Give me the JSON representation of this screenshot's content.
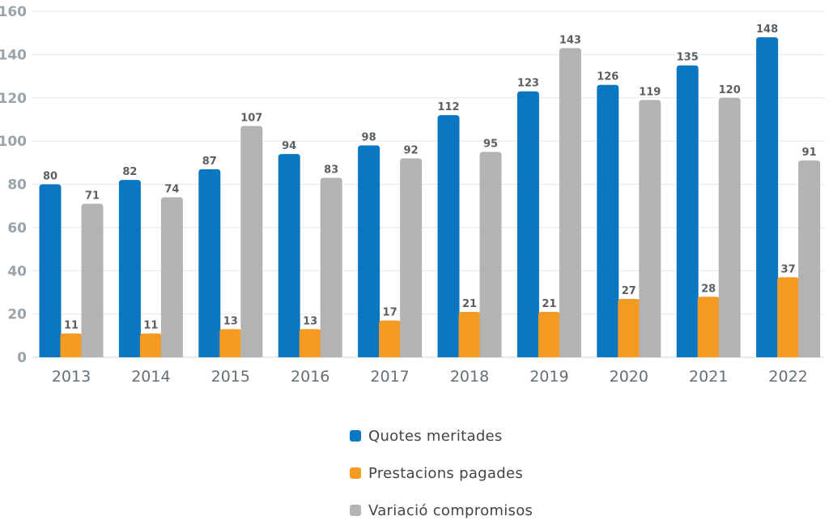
{
  "chart_data": {
    "type": "bar",
    "categories": [
      "2013",
      "2014",
      "2015",
      "2016",
      "2017",
      "2018",
      "2019",
      "2020",
      "2021",
      "2022"
    ],
    "series": [
      {
        "name": "Quotes meritades",
        "color": "#0b77c2",
        "values": [
          80,
          82,
          87,
          94,
          98,
          112,
          123,
          126,
          135,
          148
        ]
      },
      {
        "name": "Prestacions pagades",
        "color": "#f59a23",
        "values": [
          11,
          11,
          13,
          13,
          17,
          21,
          21,
          27,
          28,
          37
        ]
      },
      {
        "name": "Variació compromisos",
        "color": "#b3b3b3",
        "values": [
          71,
          74,
          107,
          83,
          92,
          95,
          143,
          119,
          120,
          91
        ]
      }
    ],
    "yticks": [
      0,
      20,
      40,
      60,
      80,
      100,
      120,
      140,
      160
    ],
    "ylim": [
      0,
      160
    ],
    "grid": true,
    "data_labels": true,
    "legend_position": "bottom"
  }
}
